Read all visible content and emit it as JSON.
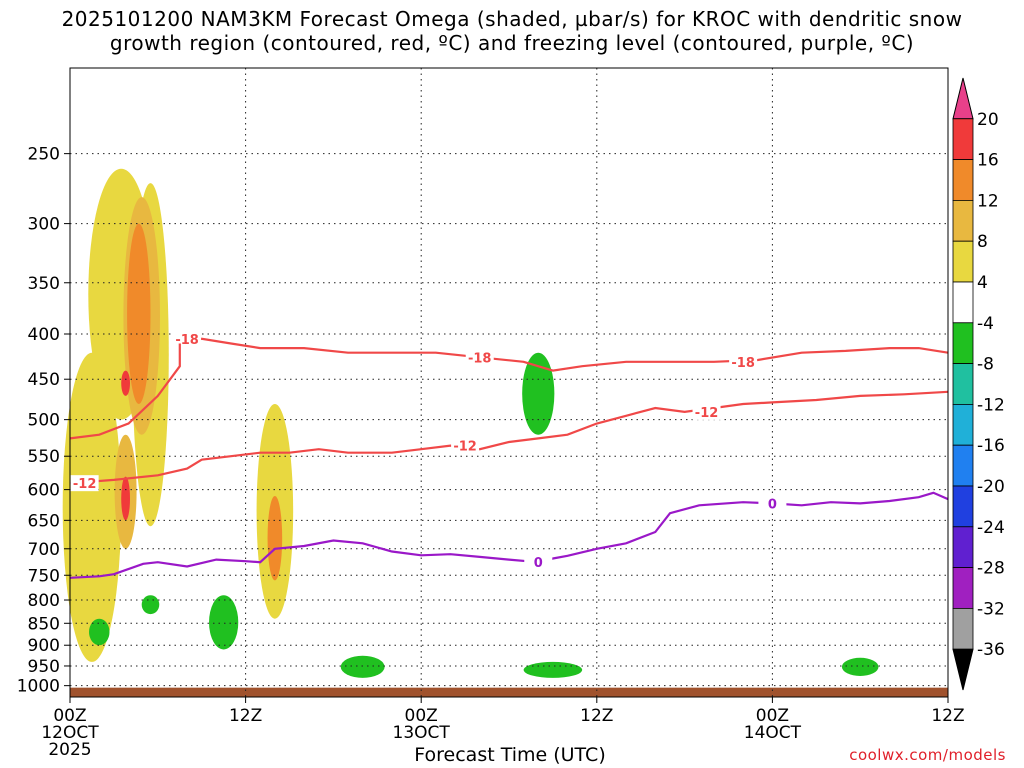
{
  "title_line1": "2025101200 NAM3KM Forecast Omega (shaded, µbar/s) for KROC with dendritic snow",
  "title_line2": "growth region (contoured, red, ºC) and freezing level (contoured, purple, ºC)",
  "credit": "coolwx.com/models",
  "chart_data": {
    "type": "heatmap",
    "xlabel": "Forecast Time (UTC)",
    "ylabel": "",
    "x_range_hours": [
      0,
      60
    ],
    "y_axis": "pressure (hPa), log scale, inverted",
    "y_range": [
      1030,
      200
    ],
    "y_ticks": [
      250,
      300,
      350,
      400,
      450,
      500,
      550,
      600,
      650,
      700,
      750,
      800,
      850,
      900,
      950,
      1000
    ],
    "x_ticks": [
      {
        "hour": 0,
        "label": [
          "00Z",
          "12OCT",
          "2025"
        ]
      },
      {
        "hour": 12,
        "label": [
          "12Z"
        ]
      },
      {
        "hour": 24,
        "label": [
          "00Z",
          "13OCT"
        ]
      },
      {
        "hour": 36,
        "label": [
          "12Z"
        ]
      },
      {
        "hour": 48,
        "label": [
          "00Z",
          "14OCT"
        ]
      },
      {
        "hour": 60,
        "label": [
          "12Z"
        ]
      }
    ],
    "grid": "dotted horizontal at pressure ticks, dotted vertical at 00Z/12Z",
    "colorbar": {
      "labels": [
        "20",
        "16",
        "12",
        "8",
        "4",
        "-4",
        "-8",
        "-12",
        "-16",
        "-20",
        "-24",
        "-28",
        "-32",
        "-36"
      ],
      "colors": [
        "#e8408a",
        "#f03a3a",
        "#f08a2a",
        "#e8b840",
        "#e8d840",
        "#ffffff",
        "#20c020",
        "#20c0a0",
        "#20b0d8",
        "#2080f0",
        "#2040e0",
        "#6020d0",
        "#a020c0",
        "#a0a0a0",
        "#000000"
      ]
    },
    "contours": [
      {
        "name": "-18",
        "color": "#f04848",
        "points": [
          [
            7.5,
            410
          ],
          [
            9,
            405
          ],
          [
            11,
            410
          ],
          [
            13,
            415
          ],
          [
            16,
            415
          ],
          [
            19,
            420
          ],
          [
            22,
            420
          ],
          [
            25,
            420
          ],
          [
            28,
            425
          ],
          [
            31,
            430
          ],
          [
            33,
            440
          ],
          [
            35,
            435
          ],
          [
            38,
            430
          ],
          [
            41,
            430
          ],
          [
            44,
            430
          ],
          [
            47,
            428
          ],
          [
            50,
            420
          ],
          [
            53,
            418
          ],
          [
            56,
            415
          ],
          [
            58,
            415
          ],
          [
            60,
            420
          ]
        ],
        "labels": [
          {
            "hour": 8,
            "p": 405
          },
          {
            "hour": 28,
            "p": 425
          },
          {
            "hour": 46,
            "p": 430
          }
        ]
      },
      {
        "name": "-18 (lower)",
        "color": "#f04848",
        "points": [
          [
            0,
            525
          ],
          [
            2,
            520
          ],
          [
            4,
            505
          ],
          [
            6,
            470
          ],
          [
            7.5,
            435
          ],
          [
            7.5,
            410
          ]
        ]
      },
      {
        "name": "-12",
        "color": "#f04848",
        "points": [
          [
            0,
            590
          ],
          [
            3,
            585
          ],
          [
            6,
            578
          ],
          [
            8,
            568
          ],
          [
            9,
            555
          ],
          [
            11,
            550
          ],
          [
            13,
            545
          ],
          [
            15,
            545
          ],
          [
            17,
            540
          ],
          [
            19,
            545
          ],
          [
            22,
            545
          ],
          [
            24,
            540
          ],
          [
            26,
            535
          ],
          [
            28,
            540
          ],
          [
            30,
            530
          ],
          [
            32,
            525
          ],
          [
            34,
            520
          ],
          [
            36,
            505
          ],
          [
            38,
            495
          ],
          [
            40,
            485
          ],
          [
            42,
            490
          ],
          [
            44,
            485
          ],
          [
            46,
            480
          ],
          [
            48,
            478
          ],
          [
            51,
            475
          ],
          [
            54,
            470
          ],
          [
            57,
            468
          ],
          [
            60,
            465
          ]
        ],
        "labels": [
          {
            "hour": 1,
            "p": 590
          },
          {
            "hour": 27,
            "p": 535
          },
          {
            "hour": 43.5,
            "p": 490
          }
        ]
      },
      {
        "name": "0",
        "color": "#9a18c8",
        "points": [
          [
            0,
            755
          ],
          [
            2,
            752
          ],
          [
            3,
            748
          ],
          [
            5,
            728
          ],
          [
            6,
            725
          ],
          [
            8,
            733
          ],
          [
            10,
            720
          ],
          [
            12,
            723
          ],
          [
            13,
            725
          ],
          [
            14,
            700
          ],
          [
            16,
            695
          ],
          [
            18,
            685
          ],
          [
            20,
            690
          ],
          [
            22,
            705
          ],
          [
            24,
            712
          ],
          [
            26,
            710
          ],
          [
            28,
            715
          ],
          [
            30,
            720
          ],
          [
            32,
            725
          ],
          [
            33,
            718
          ],
          [
            34,
            713
          ],
          [
            36,
            700
          ],
          [
            38,
            690
          ],
          [
            40,
            670
          ],
          [
            41,
            638
          ],
          [
            43,
            625
          ],
          [
            46,
            620
          ],
          [
            48,
            622
          ],
          [
            50,
            625
          ],
          [
            52,
            620
          ],
          [
            54,
            622
          ],
          [
            56,
            618
          ],
          [
            58,
            612
          ],
          [
            59,
            605
          ],
          [
            60,
            615
          ]
        ],
        "labels": [
          {
            "hour": 32,
            "p": 725
          },
          {
            "hour": 48,
            "p": 622
          }
        ]
      }
    ],
    "shaded_regions": [
      {
        "color": "#e8d840",
        "x": 3.5,
        "p": [
          500,
          260
        ],
        "w": 4.5,
        "kind": "upper-omega"
      },
      {
        "color": "#e8d840",
        "x": 1.5,
        "p": [
          940,
          420
        ],
        "w": 4,
        "kind": "lower-omega"
      },
      {
        "color": "#e8d840",
        "x": 5.5,
        "p": [
          660,
          270
        ],
        "w": 2.5
      },
      {
        "color": "#e8b840",
        "x": 4.9,
        "p": [
          520,
          280
        ],
        "w": 2.5
      },
      {
        "color": "#f08a2a",
        "x": 4.7,
        "p": [
          480,
          300
        ],
        "w": 1.6
      },
      {
        "color": "#f03a3a",
        "x": 3.8,
        "p": [
          470,
          440
        ],
        "w": 0.6
      },
      {
        "color": "#e8b840",
        "x": 3.8,
        "p": [
          700,
          520
        ],
        "w": 1.5
      },
      {
        "color": "#f03a3a",
        "x": 3.8,
        "p": [
          650,
          580
        ],
        "w": 0.6
      },
      {
        "color": "#e8d840",
        "x": 14,
        "p": [
          840,
          480
        ],
        "w": 2.5
      },
      {
        "color": "#f08a2a",
        "x": 14,
        "p": [
          760,
          610
        ],
        "w": 1
      },
      {
        "color": "#20c020",
        "x": 32,
        "p": [
          520,
          420
        ],
        "w": 2.2
      },
      {
        "color": "#20c020",
        "x": 2,
        "p": [
          900,
          840
        ],
        "w": 1.4
      },
      {
        "color": "#20c020",
        "x": 5.5,
        "p": [
          830,
          790
        ],
        "w": 1.2
      },
      {
        "color": "#20c020",
        "x": 10.5,
        "p": [
          910,
          790
        ],
        "w": 2
      },
      {
        "color": "#20c020",
        "x": 20,
        "p": [
          980,
          925
        ],
        "w": 3
      },
      {
        "color": "#20c020",
        "x": 33,
        "p": [
          980,
          940
        ],
        "w": 4
      },
      {
        "color": "#20c020",
        "x": 54,
        "p": [
          975,
          930
        ],
        "w": 2.5
      }
    ]
  }
}
